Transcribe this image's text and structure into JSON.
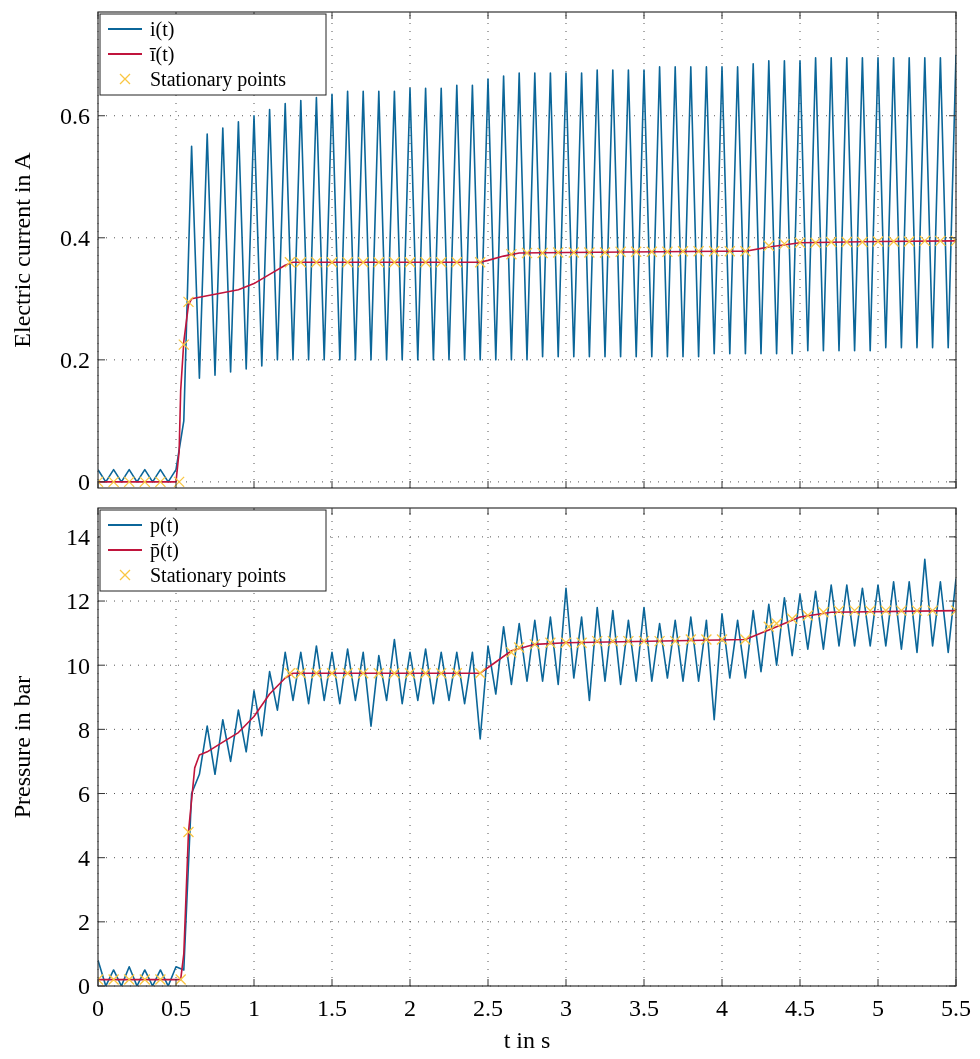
{
  "chart_data": [
    {
      "type": "line",
      "ylabel": "Electric current in A",
      "xlim": [
        0,
        5.5
      ],
      "ylim": [
        -0.01,
        0.77
      ],
      "xticks": [
        0,
        0.5,
        1,
        1.5,
        2,
        2.5,
        3,
        3.5,
        4,
        4.5,
        5,
        5.5
      ],
      "yticks": [
        0,
        0.2,
        0.4,
        0.6
      ],
      "tick_labels": "y",
      "grid": true,
      "legend": "top left",
      "x": [
        0,
        0.05,
        0.1,
        0.15,
        0.2,
        0.25,
        0.3,
        0.35,
        0.4,
        0.45,
        0.5,
        0.55,
        0.6,
        0.65,
        0.7,
        0.75,
        0.8,
        0.85,
        0.9,
        0.95,
        1,
        1.05,
        1.1,
        1.15,
        1.2,
        1.25,
        1.3,
        1.35,
        1.4,
        1.45,
        1.5,
        1.55,
        1.6,
        1.65,
        1.7,
        1.75,
        1.8,
        1.85,
        1.9,
        1.95,
        2,
        2.05,
        2.1,
        2.15,
        2.2,
        2.25,
        2.3,
        2.35,
        2.4,
        2.45,
        2.5,
        2.55,
        2.6,
        2.65,
        2.7,
        2.75,
        2.8,
        2.85,
        2.9,
        2.95,
        3,
        3.05,
        3.1,
        3.15,
        3.2,
        3.25,
        3.3,
        3.35,
        3.4,
        3.45,
        3.5,
        3.55,
        3.6,
        3.65,
        3.7,
        3.75,
        3.8,
        3.85,
        3.9,
        3.95,
        4,
        4.05,
        4.1,
        4.15,
        4.2,
        4.25,
        4.3,
        4.35,
        4.4,
        4.45,
        4.5,
        4.55,
        4.6,
        4.65,
        4.7,
        4.75,
        4.8,
        4.85,
        4.9,
        4.95,
        5,
        5.05,
        5.1,
        5.15,
        5.2,
        5.25,
        5.3,
        5.35,
        5.4,
        5.45,
        5.5
      ],
      "series": [
        {
          "name": "i(t)",
          "color": "#0b6699",
          "values": [
            0.02,
            0,
            0.02,
            0,
            0.02,
            0,
            0.02,
            0,
            0.02,
            0,
            0.02,
            0.1,
            0.55,
            0.17,
            0.57,
            0.175,
            0.58,
            0.18,
            0.59,
            0.185,
            0.6,
            0.19,
            0.61,
            0.2,
            0.62,
            0.2,
            0.625,
            0.2,
            0.63,
            0.2,
            0.635,
            0.2,
            0.64,
            0.2,
            0.64,
            0.2,
            0.64,
            0.2,
            0.64,
            0.2,
            0.645,
            0.2,
            0.645,
            0.2,
            0.645,
            0.2,
            0.65,
            0.2,
            0.65,
            0.2,
            0.66,
            0.2,
            0.665,
            0.2,
            0.67,
            0.2,
            0.67,
            0.205,
            0.67,
            0.205,
            0.67,
            0.205,
            0.67,
            0.205,
            0.675,
            0.205,
            0.675,
            0.205,
            0.675,
            0.205,
            0.675,
            0.205,
            0.68,
            0.205,
            0.68,
            0.205,
            0.68,
            0.205,
            0.68,
            0.21,
            0.68,
            0.21,
            0.68,
            0.21,
            0.685,
            0.21,
            0.69,
            0.21,
            0.69,
            0.21,
            0.69,
            0.215,
            0.695,
            0.215,
            0.695,
            0.215,
            0.695,
            0.215,
            0.695,
            0.215,
            0.695,
            0.22,
            0.695,
            0.22,
            0.695,
            0.22,
            0.695,
            0.22,
            0.695,
            0.22,
            0.7
          ]
        },
        {
          "name": "ī(t)",
          "color": "#c0143c",
          "x": [
            0,
            0.5,
            0.52,
            0.53,
            0.55,
            0.58,
            0.6,
            0.7,
            0.8,
            0.9,
            1,
            1.1,
            1.2,
            1.25,
            2.45,
            2.5,
            2.6,
            2.7,
            3,
            4,
            4.15,
            4.3,
            4.5,
            5,
            5.5
          ],
          "values": [
            0,
            0,
            0.05,
            0.15,
            0.23,
            0.29,
            0.3,
            0.305,
            0.31,
            0.315,
            0.325,
            0.34,
            0.355,
            0.36,
            0.36,
            0.363,
            0.37,
            0.375,
            0.376,
            0.378,
            0.378,
            0.385,
            0.392,
            0.394,
            0.395
          ]
        },
        {
          "name": "Stationary points",
          "type": "scatter",
          "marker": "cross",
          "color": "#f9c642",
          "x": [
            0,
            0.1,
            0.2,
            0.3,
            0.4,
            0.52,
            0.55,
            0.58,
            1.23,
            1.3,
            1.4,
            1.5,
            1.6,
            1.7,
            1.8,
            1.9,
            2,
            2.1,
            2.2,
            2.3,
            2.45,
            2.65,
            2.75,
            2.85,
            2.95,
            3.05,
            3.15,
            3.25,
            3.35,
            3.45,
            3.55,
            3.65,
            3.75,
            3.85,
            3.95,
            4.05,
            4.15,
            4.3,
            4.4,
            4.5,
            4.6,
            4.7,
            4.8,
            4.9,
            5,
            5.1,
            5.2,
            5.3,
            5.4,
            5.5
          ],
          "values": [
            0,
            0,
            0,
            0,
            0,
            0,
            0.225,
            0.295,
            0.36,
            0.36,
            0.36,
            0.36,
            0.36,
            0.36,
            0.36,
            0.36,
            0.36,
            0.36,
            0.36,
            0.36,
            0.36,
            0.373,
            0.375,
            0.375,
            0.376,
            0.376,
            0.376,
            0.376,
            0.377,
            0.377,
            0.377,
            0.377,
            0.378,
            0.378,
            0.378,
            0.378,
            0.378,
            0.387,
            0.39,
            0.392,
            0.392,
            0.393,
            0.393,
            0.393,
            0.394,
            0.394,
            0.394,
            0.395,
            0.395,
            0.395
          ]
        }
      ]
    },
    {
      "type": "line",
      "xlabel": "t in s",
      "ylabel": "Pressure in bar",
      "xlim": [
        0,
        5.5
      ],
      "ylim": [
        0,
        14.9
      ],
      "xticks": [
        0,
        0.5,
        1,
        1.5,
        2,
        2.5,
        3,
        3.5,
        4,
        4.5,
        5,
        5.5
      ],
      "yticks": [
        0,
        2,
        4,
        6,
        8,
        10,
        12,
        14
      ],
      "grid": true,
      "legend": "top left",
      "x": [
        0,
        0.05,
        0.1,
        0.15,
        0.2,
        0.25,
        0.3,
        0.35,
        0.4,
        0.45,
        0.5,
        0.55,
        0.6,
        0.65,
        0.7,
        0.75,
        0.8,
        0.85,
        0.9,
        0.95,
        1,
        1.05,
        1.1,
        1.15,
        1.2,
        1.25,
        1.3,
        1.35,
        1.4,
        1.45,
        1.5,
        1.55,
        1.6,
        1.65,
        1.7,
        1.75,
        1.8,
        1.85,
        1.9,
        1.95,
        2,
        2.05,
        2.1,
        2.15,
        2.2,
        2.25,
        2.3,
        2.35,
        2.4,
        2.45,
        2.5,
        2.55,
        2.6,
        2.65,
        2.7,
        2.75,
        2.8,
        2.85,
        2.9,
        2.95,
        3,
        3.05,
        3.1,
        3.15,
        3.2,
        3.25,
        3.3,
        3.35,
        3.4,
        3.45,
        3.5,
        3.55,
        3.6,
        3.65,
        3.7,
        3.75,
        3.8,
        3.85,
        3.9,
        3.95,
        4,
        4.05,
        4.1,
        4.15,
        4.2,
        4.25,
        4.3,
        4.35,
        4.4,
        4.45,
        4.5,
        4.55,
        4.6,
        4.65,
        4.7,
        4.75,
        4.8,
        4.85,
        4.9,
        4.95,
        5,
        5.05,
        5.1,
        5.15,
        5.2,
        5.25,
        5.3,
        5.35,
        5.4,
        5.45,
        5.5
      ],
      "series": [
        {
          "name": "p(t)",
          "color": "#0b6699",
          "values": [
            0.8,
            0,
            0.5,
            0,
            0.6,
            0,
            0.5,
            0,
            0.5,
            0,
            0.6,
            0.5,
            6,
            6.6,
            8.1,
            6.6,
            8.3,
            7,
            8.6,
            7.3,
            9.2,
            7.8,
            9.8,
            8.6,
            10.4,
            8.9,
            10.4,
            8.8,
            10.6,
            8.9,
            10.4,
            8.8,
            10.5,
            8.9,
            10.4,
            8.1,
            10.3,
            8.9,
            10.8,
            8.8,
            10.4,
            8.9,
            10.5,
            8.8,
            10.4,
            8.9,
            10.4,
            8.8,
            10.4,
            7.7,
            10.6,
            9.1,
            11.2,
            9.4,
            11.3,
            9.5,
            11.4,
            9.5,
            11.5,
            9.4,
            12.4,
            9.6,
            11.5,
            8.9,
            11.8,
            9.5,
            11.7,
            9.4,
            11.4,
            9.5,
            11.8,
            9.5,
            11.3,
            9.6,
            11.4,
            9.5,
            11.5,
            9.5,
            11.4,
            8.3,
            11.6,
            9.6,
            11.4,
            9.6,
            11.7,
            9.8,
            11.9,
            10,
            12.1,
            10.3,
            12.2,
            10.5,
            12.3,
            10.5,
            12.5,
            10.6,
            12.5,
            10.6,
            12.4,
            10.6,
            12.5,
            10.6,
            12.6,
            10.5,
            12.6,
            10.4,
            13.3,
            10.6,
            12.6,
            10.4,
            12.7
          ]
        },
        {
          "name": "p̄(t)",
          "color": "#c0143c",
          "x": [
            0,
            0.53,
            0.55,
            0.58,
            0.62,
            0.65,
            0.7,
            0.8,
            0.9,
            1,
            1.1,
            1.2,
            1.25,
            2.45,
            2.55,
            2.65,
            2.8,
            3,
            4.15,
            4.3,
            4.5,
            4.7,
            5.5
          ],
          "values": [
            0.2,
            0.2,
            1,
            4.8,
            6.8,
            7.2,
            7.3,
            7.6,
            7.9,
            8.4,
            9.1,
            9.6,
            9.75,
            9.75,
            10.1,
            10.45,
            10.65,
            10.7,
            10.8,
            11.1,
            11.5,
            11.65,
            11.7
          ]
        },
        {
          "name": "Stationary points",
          "type": "scatter",
          "marker": "cross",
          "color": "#f9c642",
          "x": [
            0,
            0.1,
            0.2,
            0.3,
            0.4,
            0.53,
            0.58,
            1.23,
            1.3,
            1.4,
            1.5,
            1.6,
            1.7,
            1.8,
            1.9,
            2,
            2.1,
            2.2,
            2.3,
            2.45,
            2.65,
            2.7,
            2.8,
            2.9,
            3,
            3.1,
            3.2,
            3.3,
            3.4,
            3.5,
            3.6,
            3.7,
            3.8,
            3.9,
            4,
            4.15,
            4.3,
            4.35,
            4.45,
            4.55,
            4.65,
            4.75,
            4.85,
            4.95,
            5.05,
            5.15,
            5.25,
            5.35,
            5.5
          ],
          "values": [
            0.2,
            0.2,
            0.2,
            0.2,
            0.2,
            0.2,
            4.8,
            9.75,
            9.75,
            9.75,
            9.75,
            9.75,
            9.75,
            9.75,
            9.75,
            9.75,
            9.75,
            9.75,
            9.75,
            9.75,
            10.4,
            10.55,
            10.65,
            10.7,
            10.7,
            10.7,
            10.75,
            10.75,
            10.75,
            10.75,
            10.75,
            10.75,
            10.8,
            10.8,
            10.8,
            10.8,
            11.2,
            11.3,
            11.45,
            11.55,
            11.65,
            11.7,
            11.7,
            11.7,
            11.7,
            11.7,
            11.7,
            11.7,
            11.7
          ]
        }
      ]
    }
  ]
}
